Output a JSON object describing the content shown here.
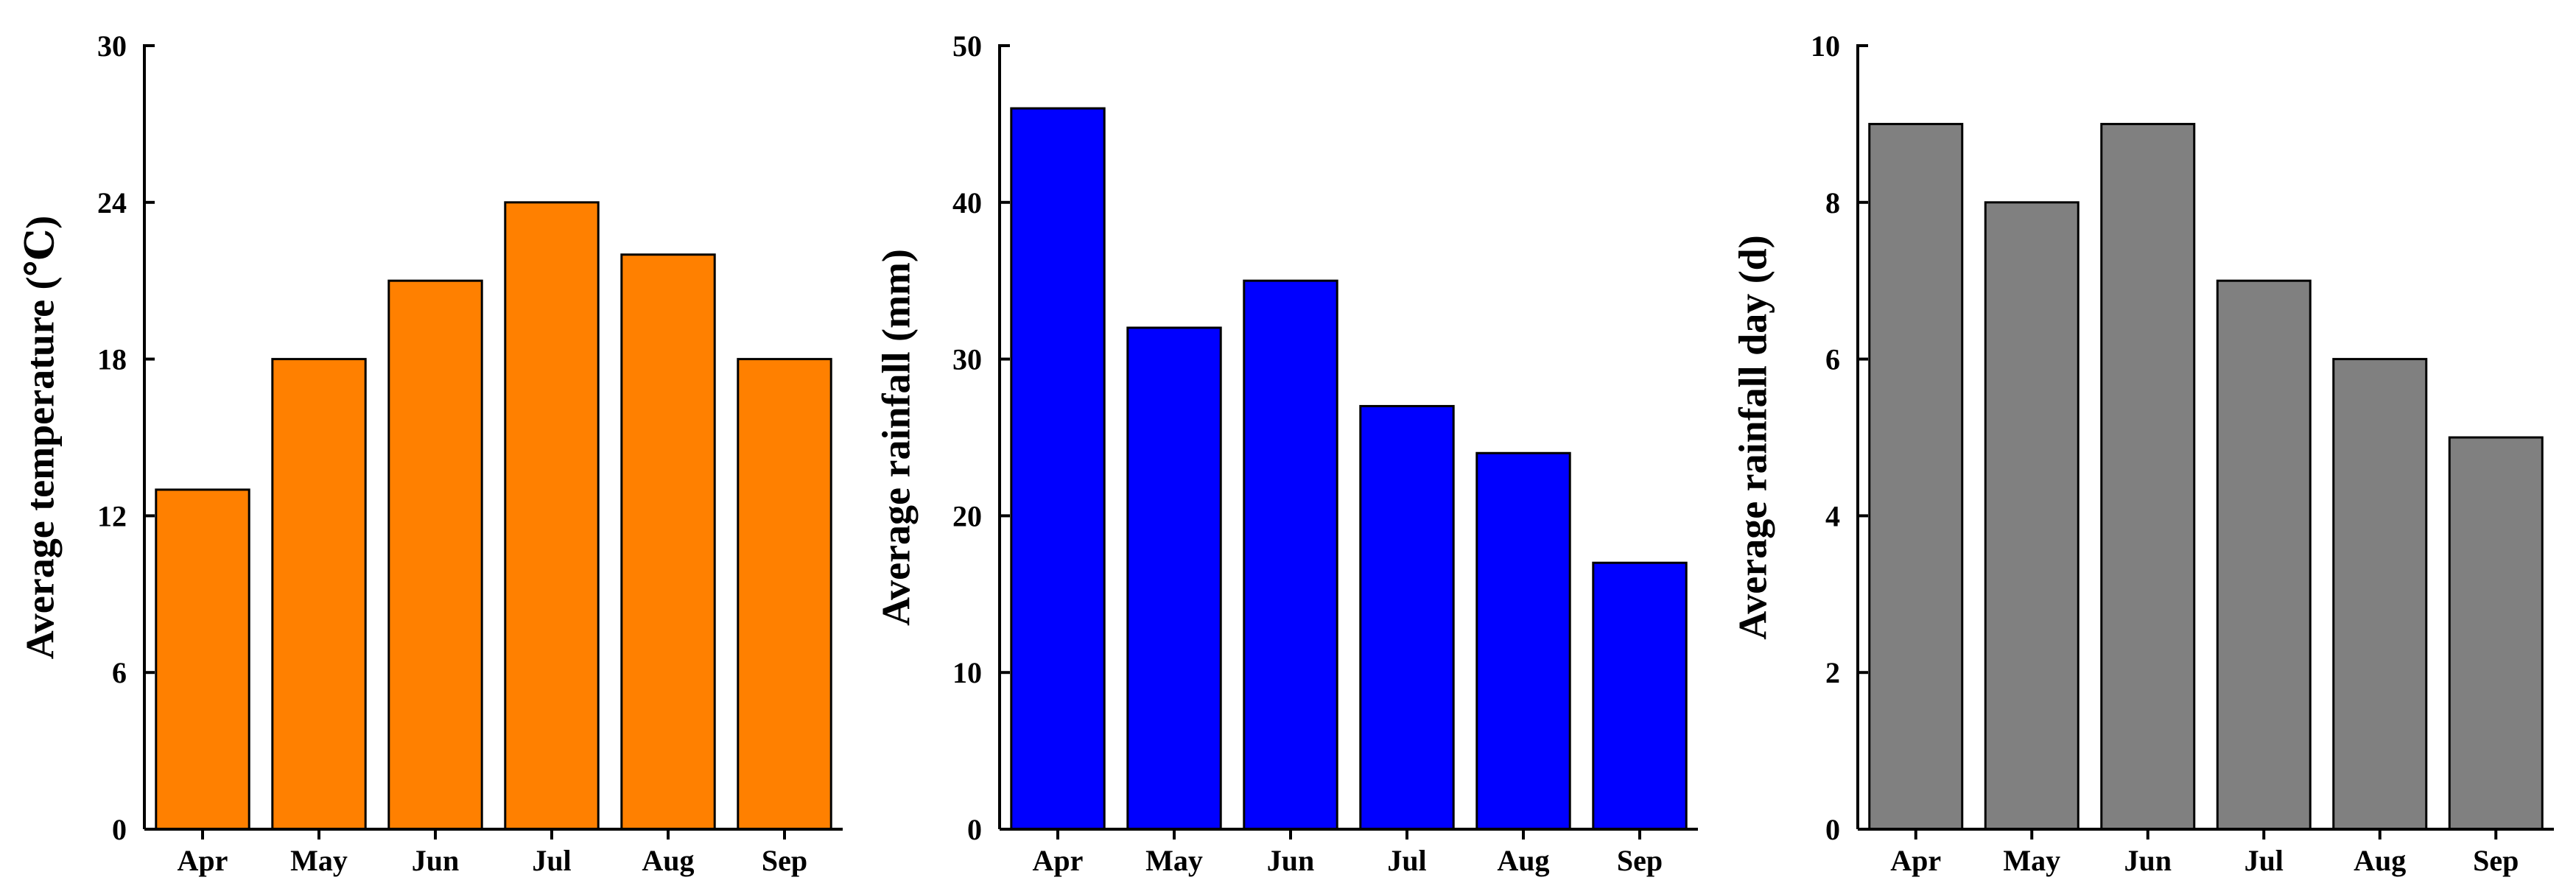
{
  "chart_data": [
    {
      "type": "bar",
      "categories": [
        "Apr",
        "May",
        "Jun",
        "Jul",
        "Aug",
        "Sep"
      ],
      "values": [
        13,
        18,
        21,
        24,
        22,
        18
      ],
      "ylabel": "Average temperature (℃)",
      "ylim": [
        0,
        30
      ],
      "yticks": [
        "0",
        "6",
        "12",
        "18",
        "24",
        "30"
      ],
      "color": "#FF8000",
      "grid": false
    },
    {
      "type": "bar",
      "categories": [
        "Apr",
        "May",
        "Jun",
        "Jul",
        "Aug",
        "Sep"
      ],
      "values": [
        46,
        32,
        35,
        27,
        24,
        17
      ],
      "ylabel": "Average rainfall (mm)",
      "ylim": [
        0,
        50
      ],
      "yticks": [
        "0",
        "10",
        "20",
        "30",
        "40",
        "50"
      ],
      "color": "#0000FF",
      "grid": false
    },
    {
      "type": "bar",
      "categories": [
        "Apr",
        "May",
        "Jun",
        "Jul",
        "Aug",
        "Sep"
      ],
      "values": [
        9,
        8,
        9,
        7,
        6,
        5
      ],
      "ylabel": "Average rainfall day (d)",
      "ylim": [
        0,
        10
      ],
      "yticks": [
        "0",
        "2",
        "4",
        "6",
        "8",
        "10"
      ],
      "color": "#808080",
      "grid": false
    }
  ]
}
